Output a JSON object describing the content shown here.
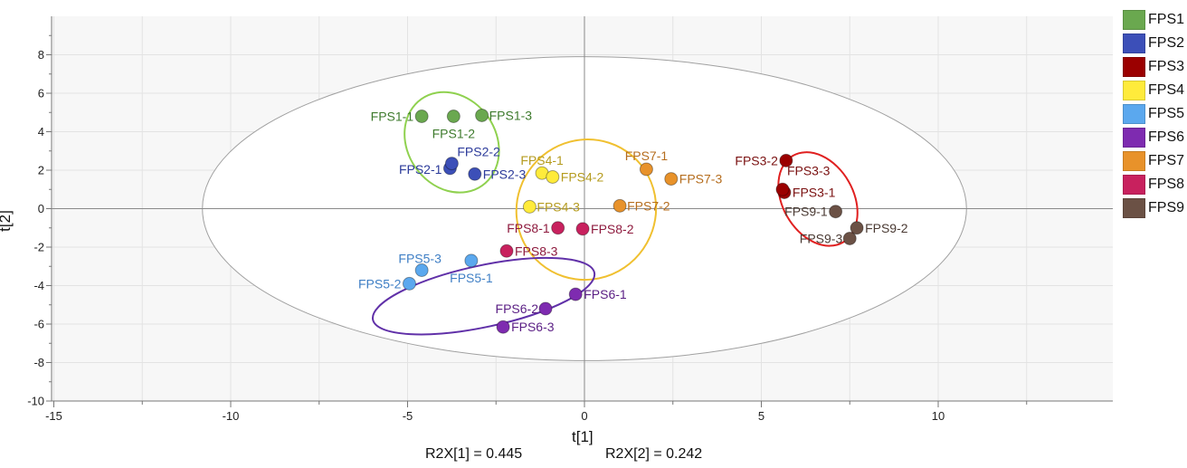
{
  "chart_data": {
    "type": "scatter",
    "xlabel": "t[1]",
    "ylabel": "t[2]",
    "xlim": [
      -15,
      15
    ],
    "ylim": [
      -10,
      10
    ],
    "x_ticks": [
      -15,
      -10,
      -5,
      0,
      5,
      10
    ],
    "y_ticks": [
      -10,
      -8,
      -6,
      -4,
      -2,
      0,
      2,
      4,
      6,
      8
    ],
    "grid": true,
    "legend_position": "right",
    "footnotes": [
      "R2X[1] = 0.445",
      "R2X[2] = 0.242"
    ],
    "hotelling_ellipse": {
      "center": [
        0,
        0
      ],
      "semi_axes": [
        10.8,
        7.9
      ]
    },
    "series": [
      {
        "name": "FPS1",
        "color": "#6aa84f",
        "label_color": "#3d7a2c",
        "points": [
          {
            "label": "FPS1-1",
            "x": -4.6,
            "y": 4.8
          },
          {
            "label": "FPS1-2",
            "x": -3.7,
            "y": 4.8
          },
          {
            "label": "FPS1-3",
            "x": -2.9,
            "y": 4.85
          }
        ],
        "group_ellipse": {
          "stroke": "#8fd14f",
          "center": [
            -3.75,
            3.45
          ],
          "semi_axes": [
            1.25,
            2.75
          ],
          "rotation": -35
        }
      },
      {
        "name": "FPS2",
        "color": "#3c4fb8",
        "label_color": "#2b3a9a",
        "points": [
          {
            "label": "FPS2-1",
            "x": -3.8,
            "y": 2.1
          },
          {
            "label": "FPS2-2",
            "x": -3.75,
            "y": 2.35
          },
          {
            "label": "FPS2-3",
            "x": -3.1,
            "y": 1.8
          }
        ]
      },
      {
        "name": "FPS3",
        "color": "#9b0000",
        "label_color": "#7a1010",
        "points": [
          {
            "label": "FPS3-1",
            "x": 5.65,
            "y": 0.85
          },
          {
            "label": "FPS3-2",
            "x": 5.7,
            "y": 2.5
          },
          {
            "label": "FPS3-3",
            "x": 5.6,
            "y": 1.0
          }
        ],
        "group_ellipse": {
          "stroke": "#e02020",
          "center": [
            6.6,
            0.5
          ],
          "semi_axes": [
            1.0,
            2.6
          ],
          "rotation": -30
        }
      },
      {
        "name": "FPS4",
        "color": "#ffeb3b",
        "label_color": "#b59b1e",
        "points": [
          {
            "label": "FPS4-1",
            "x": -1.2,
            "y": 1.85
          },
          {
            "label": "FPS4-2",
            "x": -0.9,
            "y": 1.65
          },
          {
            "label": "FPS4-3",
            "x": -1.55,
            "y": 0.1
          }
        ],
        "group_ellipse": {
          "stroke": "#f0c030",
          "center": [
            0.05,
            -0.05
          ],
          "semi_axes": [
            2.0,
            3.6
          ],
          "rotation": -50
        }
      },
      {
        "name": "FPS5",
        "color": "#5ba8ee",
        "label_color": "#3f7fc5",
        "points": [
          {
            "label": "FPS5-1",
            "x": -3.2,
            "y": -2.7
          },
          {
            "label": "FPS5-2",
            "x": -4.95,
            "y": -3.9
          },
          {
            "label": "FPS5-3",
            "x": -4.6,
            "y": -3.2
          }
        ]
      },
      {
        "name": "FPS6",
        "color": "#7e2bb0",
        "label_color": "#5a1e84",
        "points": [
          {
            "label": "FPS6-1",
            "x": -0.25,
            "y": -4.45
          },
          {
            "label": "FPS6-2",
            "x": -1.1,
            "y": -5.2
          },
          {
            "label": "FPS6-3",
            "x": -2.3,
            "y": -6.15
          }
        ],
        "group_ellipse": {
          "stroke": "#6030a8",
          "center": [
            -2.85,
            -4.55
          ],
          "semi_axes": [
            3.2,
            1.6
          ],
          "rotation": -12
        }
      },
      {
        "name": "FPS7",
        "color": "#e8922a",
        "label_color": "#b56d1e",
        "points": [
          {
            "label": "FPS7-1",
            "x": 1.75,
            "y": 2.05
          },
          {
            "label": "FPS7-2",
            "x": 1.0,
            "y": 0.15
          },
          {
            "label": "FPS7-3",
            "x": 2.45,
            "y": 1.55
          }
        ]
      },
      {
        "name": "FPS8",
        "color": "#c8215e",
        "label_color": "#8e1a3e",
        "points": [
          {
            "label": "FPS8-1",
            "x": -0.75,
            "y": -1.0
          },
          {
            "label": "FPS8-2",
            "x": -0.05,
            "y": -1.05
          },
          {
            "label": "FPS8-3",
            "x": -2.2,
            "y": -2.2
          }
        ]
      },
      {
        "name": "FPS9",
        "color": "#6b5145",
        "label_color": "#4a3a33",
        "points": [
          {
            "label": "FPS9-1",
            "x": 7.1,
            "y": -0.15
          },
          {
            "label": "FPS9-2",
            "x": 7.7,
            "y": -1.0
          },
          {
            "label": "FPS9-3",
            "x": 7.5,
            "y": -1.55
          }
        ]
      }
    ]
  }
}
